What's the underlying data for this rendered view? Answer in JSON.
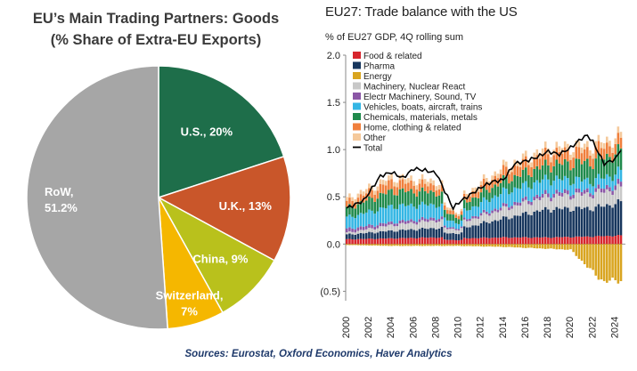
{
  "pie": {
    "title_line1": "EU’s Main Trading Partners: Goods",
    "title_line2": "(% Share of Extra-EU Exports)"
  },
  "bar": {
    "title": "EU27: Trade balance with the US",
    "subtitle": "% of EU27 GDP, 4Q rolling sum"
  },
  "source": "Sources: Eurostat, Oxford Economics, Haver Analytics",
  "chart_data": [
    {
      "type": "pie",
      "title": "EU’s Main Trading Partners: Goods (% Share of Extra-EU Exports)",
      "slices": [
        {
          "name": "U.S.",
          "label": "U.S., 20%",
          "value": 20,
          "color": "#1e6e4a",
          "label_color": "#ffffff"
        },
        {
          "name": "U.K.",
          "label": "U.K., 13%",
          "value": 13,
          "color": "#c9562a",
          "label_color": "#ffffff"
        },
        {
          "name": "China",
          "label": "China, 9%",
          "value": 9,
          "color": "#b9c11c",
          "label_color": "#ffffff"
        },
        {
          "name": "Switzerland",
          "label_line1": "Switzerland,",
          "label_line2": "7%",
          "value": 7,
          "color": "#f5b700",
          "label_color": "#ffffff"
        },
        {
          "name": "RoW",
          "label_line1": "RoW,",
          "label_line2": "51.2%",
          "value": 51.2,
          "color": "#a6a6a6",
          "label_color": "#ffffff"
        }
      ]
    },
    {
      "type": "bar",
      "stacked": true,
      "title": "EU27: Trade balance with the US",
      "ylabel": "% of EU27 GDP, 4Q rolling sum",
      "ylim": [
        -0.6,
        2.0
      ],
      "yticks": [
        "2.0",
        "1.5",
        "1.0",
        "0.5",
        "0.0",
        "(0.5)"
      ],
      "ytick_values": [
        2.0,
        1.5,
        1.0,
        0.5,
        0.0,
        -0.5
      ],
      "xticks": [
        "2000",
        "2002",
        "2004",
        "2006",
        "2008",
        "2010",
        "2012",
        "2014",
        "2016",
        "2018",
        "2020",
        "2022",
        "2024"
      ],
      "x_start": 2000,
      "quarters_per_year": 4,
      "legend_position": "top-left",
      "series": [
        {
          "name": "Food & related",
          "color": "#d7262e",
          "anchor_years": [
            2000,
            2004,
            2008,
            2010,
            2014,
            2018,
            2022,
            2024.5
          ],
          "anchor_values": [
            0.05,
            0.06,
            0.07,
            0.06,
            0.07,
            0.07,
            0.08,
            0.09
          ]
        },
        {
          "name": "Pharma",
          "color": "#17365d",
          "anchor_years": [
            2000,
            2004,
            2008,
            2010,
            2014,
            2018,
            2022,
            2024.5
          ],
          "anchor_values": [
            0.05,
            0.08,
            0.1,
            0.1,
            0.2,
            0.3,
            0.3,
            0.35
          ]
        },
        {
          "name": "Energy",
          "color": "#d9a520",
          "anchor_years": [
            2000,
            2004,
            2008,
            2010,
            2014,
            2018,
            2020,
            2022,
            2023,
            2024.5
          ],
          "anchor_values": [
            -0.01,
            -0.02,
            -0.02,
            -0.02,
            -0.03,
            -0.05,
            -0.06,
            -0.3,
            -0.4,
            -0.38
          ]
        },
        {
          "name": "Machinery, Nuclear React",
          "color": "#c8c8c8",
          "anchor_years": [
            2000,
            2004,
            2008,
            2010,
            2014,
            2018,
            2022,
            2024.5
          ],
          "anchor_values": [
            0.02,
            0.06,
            0.08,
            0.06,
            0.1,
            0.13,
            0.15,
            0.15
          ]
        },
        {
          "name": "Electr Machinery, Sound, TV",
          "color": "#8b57a6",
          "anchor_years": [
            2000,
            2004,
            2008,
            2010,
            2014,
            2018,
            2022,
            2024.5
          ],
          "anchor_values": [
            0.04,
            0.03,
            0.03,
            0.02,
            0.03,
            0.04,
            0.04,
            0.05
          ]
        },
        {
          "name": "Vehicles, boats, aircraft, trains",
          "color": "#34b6e4",
          "anchor_years": [
            2000,
            2004,
            2008,
            2010,
            2014,
            2018,
            2022,
            2024.5
          ],
          "anchor_values": [
            0.12,
            0.17,
            0.14,
            0.08,
            0.15,
            0.15,
            0.1,
            0.12
          ]
        },
        {
          "name": "Chemicals, materials, metals",
          "color": "#1f8a4c",
          "anchor_years": [
            2000,
            2004,
            2008,
            2010,
            2014,
            2018,
            2022,
            2024.5
          ],
          "anchor_values": [
            0.1,
            0.16,
            0.13,
            0.08,
            0.12,
            0.15,
            0.2,
            0.22
          ]
        },
        {
          "name": "Home, clothing & related",
          "color": "#f07f3c",
          "anchor_years": [
            2000,
            2004,
            2008,
            2010,
            2014,
            2018,
            2022,
            2024.5
          ],
          "anchor_values": [
            0.06,
            0.1,
            0.07,
            0.05,
            0.1,
            0.12,
            0.12,
            0.11
          ]
        },
        {
          "name": "Other",
          "color": "#f5c99b",
          "anchor_years": [
            2000,
            2004,
            2008,
            2010,
            2014,
            2018,
            2022,
            2024.5
          ],
          "anchor_values": [
            0.04,
            0.05,
            0.05,
            0.03,
            0.05,
            0.06,
            0.06,
            0.06
          ]
        }
      ],
      "total": {
        "name": "Total",
        "color": "#000000",
        "anchor_years": [
          2000,
          2001.5,
          2003,
          2004,
          2005,
          2006,
          2007,
          2008,
          2009,
          2009.5,
          2010,
          2011,
          2012,
          2013,
          2014,
          2015,
          2016,
          2017,
          2018,
          2019,
          2020,
          2021,
          2021.5,
          2022,
          2023,
          2024,
          2024.75
        ],
        "anchor_values": [
          0.38,
          0.46,
          0.72,
          0.76,
          0.7,
          0.8,
          0.78,
          0.75,
          0.5,
          0.38,
          0.44,
          0.52,
          0.6,
          0.66,
          0.68,
          0.85,
          0.88,
          0.92,
          0.98,
          0.95,
          1.02,
          1.12,
          1.15,
          1.08,
          0.85,
          0.9,
          1.06
        ]
      }
    }
  ]
}
